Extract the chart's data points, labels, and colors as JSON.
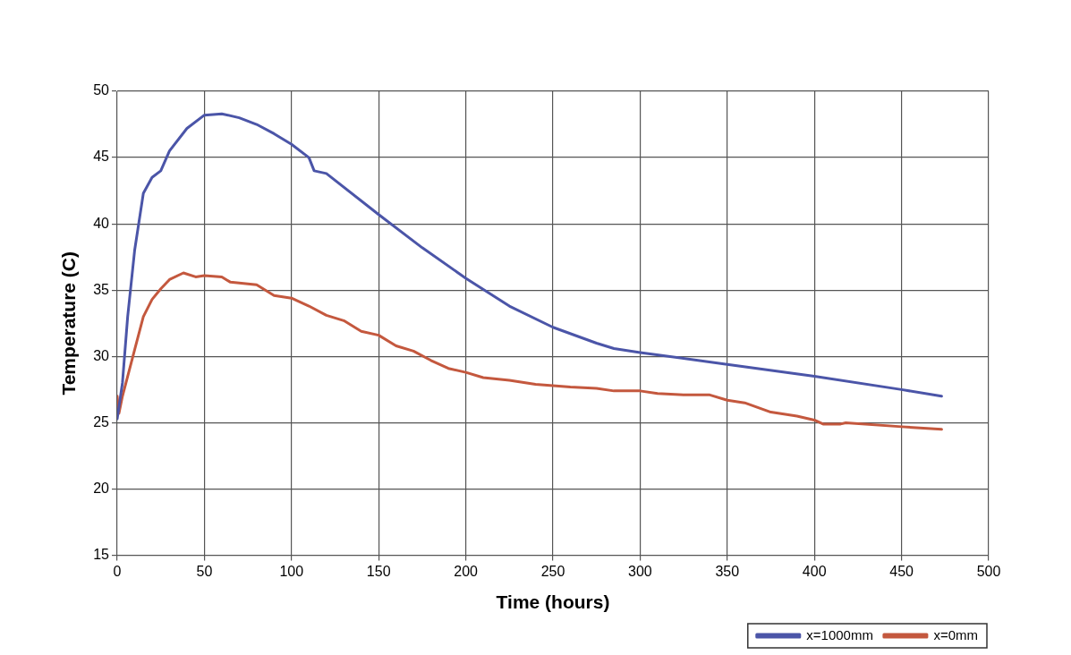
{
  "chart_data": {
    "type": "line",
    "xlabel": "Time (hours)",
    "ylabel": "Temperature (C)",
    "xlim": [
      0,
      500
    ],
    "xticks": [
      0,
      50,
      100,
      150,
      200,
      250,
      300,
      350,
      400,
      450,
      500
    ],
    "ylim": [
      15,
      50
    ],
    "yticks": [
      15,
      20,
      25,
      30,
      35,
      40,
      45,
      50
    ],
    "grid": true,
    "legend": "bottom right",
    "marker": "none",
    "line_style": "solid",
    "series": [
      {
        "name": "x=1000mm",
        "color": "#4b55a8",
        "x": [
          0,
          3,
          6,
          10,
          15,
          20,
          25,
          30,
          40,
          50,
          60,
          70,
          80,
          90,
          100,
          110,
          113,
          120,
          150,
          175,
          200,
          225,
          250,
          275,
          285,
          300,
          350,
          400,
          450,
          473
        ],
        "values": [
          25.3,
          28,
          33,
          38,
          42.3,
          43.5,
          44,
          45.5,
          47.2,
          48.2,
          48.3,
          48,
          47.5,
          46.8,
          46,
          45,
          44,
          43.8,
          40.7,
          38.2,
          35.9,
          33.8,
          32.2,
          31,
          30.6,
          30.3,
          29.4,
          28.5,
          27.5,
          27
        ]
      },
      {
        "name": "x=0mm",
        "color": "#c4583e",
        "x": [
          0,
          1,
          3,
          6,
          10,
          15,
          20,
          25,
          30,
          38,
          45,
          50,
          60,
          65,
          80,
          90,
          100,
          110,
          120,
          130,
          140,
          150,
          160,
          170,
          180,
          190,
          200,
          210,
          225,
          240,
          260,
          275,
          285,
          300,
          310,
          325,
          340,
          350,
          360,
          375,
          390,
          400,
          405,
          415,
          418,
          450,
          473
        ],
        "values": [
          27,
          25.7,
          27,
          28.5,
          30.5,
          33,
          34.3,
          35.1,
          35.8,
          36.3,
          36,
          36.1,
          36,
          35.6,
          35.4,
          34.6,
          34.4,
          33.8,
          33.1,
          32.7,
          31.9,
          31.6,
          30.8,
          30.4,
          29.7,
          29.1,
          28.8,
          28.4,
          28.2,
          27.9,
          27.7,
          27.6,
          27.4,
          27.4,
          27.2,
          27.1,
          27.1,
          26.7,
          26.5,
          25.8,
          25.5,
          25.2,
          24.9,
          24.9,
          25,
          24.7,
          24.5
        ]
      }
    ]
  }
}
